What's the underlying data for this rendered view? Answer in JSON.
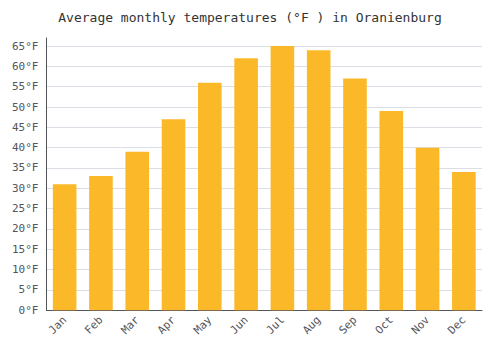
{
  "chart_data": {
    "type": "bar",
    "title": "Average monthly temperatures (°F ) in Oranienburg",
    "categories": [
      "Jan",
      "Feb",
      "Mar",
      "Apr",
      "May",
      "Jun",
      "Jul",
      "Aug",
      "Sep",
      "Oct",
      "Nov",
      "Dec"
    ],
    "values": [
      31,
      33,
      39,
      47,
      56,
      62,
      65,
      64,
      57,
      49,
      40,
      34
    ],
    "color": "#FBB829",
    "ylim": [
      0,
      67
    ],
    "yticks": [
      {
        "value": 0,
        "label": "0°F"
      },
      {
        "value": 5,
        "label": "5°F"
      },
      {
        "value": 10,
        "label": "10°F"
      },
      {
        "value": 15,
        "label": "15°F"
      },
      {
        "value": 20,
        "label": "20°F"
      },
      {
        "value": 25,
        "label": "25°F"
      },
      {
        "value": 30,
        "label": "30°F"
      },
      {
        "value": 35,
        "label": "35°F"
      },
      {
        "value": 40,
        "label": "40°F"
      },
      {
        "value": 45,
        "label": "45°F"
      },
      {
        "value": 50,
        "label": "50°F"
      },
      {
        "value": 55,
        "label": "55°F"
      },
      {
        "value": 60,
        "label": "60°F"
      },
      {
        "value": 65,
        "label": "65°F"
      }
    ],
    "grid": true
  }
}
